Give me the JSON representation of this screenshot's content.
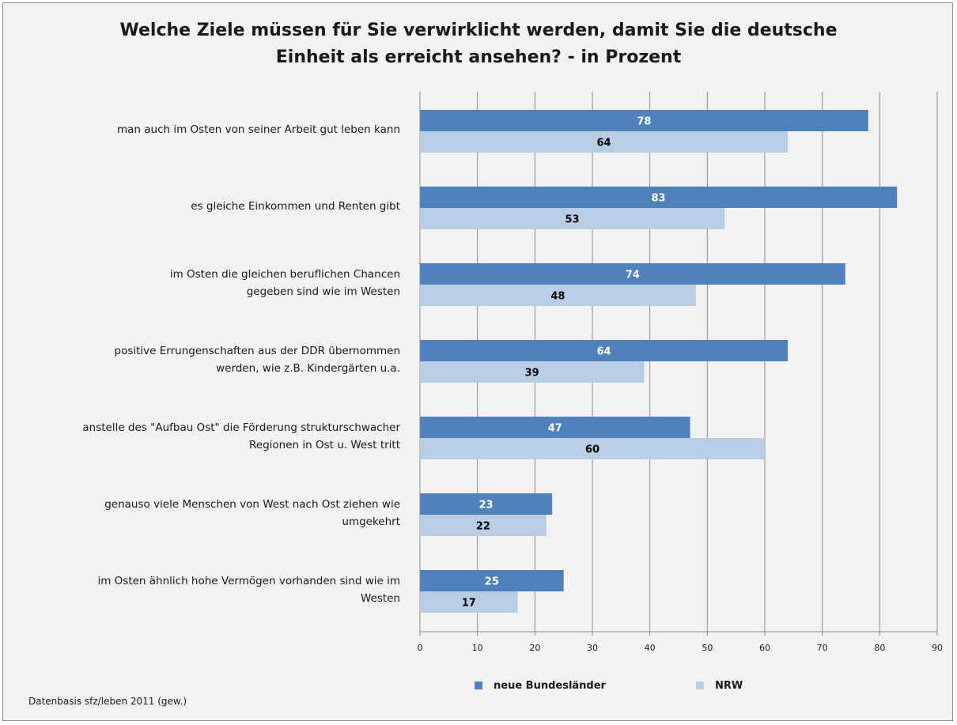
{
  "chart_data": {
    "type": "bar",
    "orientation": "horizontal",
    "title": "Welche Ziele müssen für Sie verwirklicht werden, damit Sie die deutsche\nEinheit als erreicht ansehen? - in Prozent",
    "categories": [
      "man auch im Osten von seiner Arbeit gut leben kann",
      "es gleiche Einkommen und Renten gibt",
      "im Osten die gleichen beruflichen Chancen\ngegeben sind wie im  Westen",
      "positive Errungenschaften aus der DDR übernommen\nwerden, wie z.B. Kindergärten u.a.",
      "anstelle des \"Aufbau  Ost\" die Förderung strukturschwacher\nRegionen in Ost u. West tritt",
      "genauso viele Menschen von West nach Ost ziehen wie\numgekehrt",
      "im Osten ähnlich hohe Vermögen vorhanden sind wie im\nWesten"
    ],
    "series": [
      {
        "name": "neue Bundesländer",
        "color": "#4f81bd",
        "label_color": "#ffffff",
        "values": [
          78,
          83,
          74,
          64,
          47,
          23,
          25
        ]
      },
      {
        "name": "NRW",
        "color": "#b9cde5",
        "label_color": "#000000",
        "values": [
          64,
          53,
          48,
          39,
          60,
          22,
          17
        ]
      }
    ],
    "xlim": [
      0,
      90
    ],
    "xticks": [
      "0",
      "10",
      "20",
      "30",
      "40",
      "50",
      "60",
      "70",
      "80",
      "90"
    ],
    "grid": true,
    "legend": "bottom"
  },
  "footer": {
    "source": "Datenbasis sfz/leben 2011 (gew.)"
  }
}
